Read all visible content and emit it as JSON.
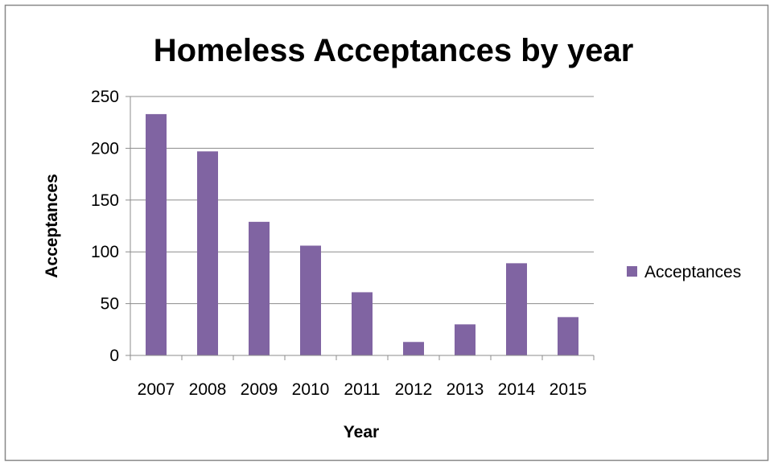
{
  "chart_data": {
    "type": "bar",
    "title": "Homeless Acceptances by year",
    "xlabel": "Year",
    "ylabel": "Acceptances",
    "categories": [
      "2007",
      "2008",
      "2009",
      "2010",
      "2011",
      "2012",
      "2013",
      "2014",
      "2015"
    ],
    "series": [
      {
        "name": "Acceptances",
        "values": [
          233,
          197,
          129,
          106,
          61,
          13,
          30,
          89,
          37
        ],
        "color": "#8064a2"
      }
    ],
    "ylim": [
      0,
      250
    ],
    "yticks": [
      "0",
      "50",
      "100",
      "150",
      "200",
      "250"
    ],
    "grid": true,
    "legend_position": "right"
  }
}
